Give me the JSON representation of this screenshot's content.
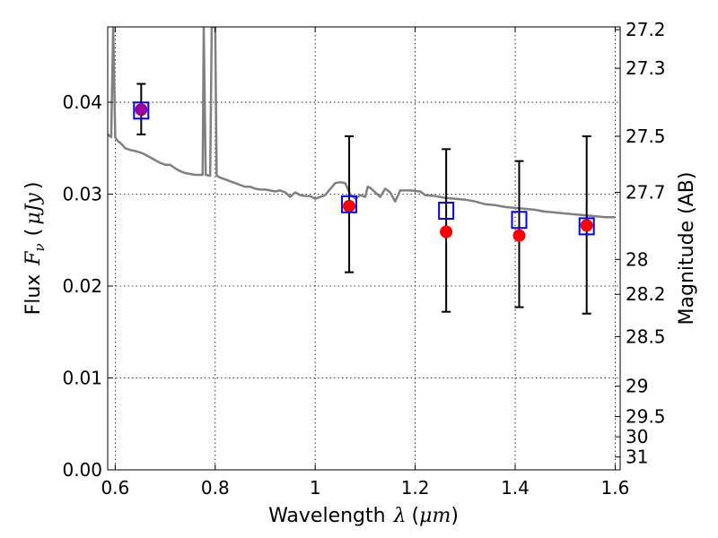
{
  "chart_data": {
    "type": "scatter",
    "xlabel": "Wavelength",
    "xlabel_symbol": "λ",
    "xlabel_unit": "μm",
    "ylabel": "Flux",
    "ylabel_symbol": "F",
    "ylabel_subscript": "ν",
    "ylabel_unit": "μJy",
    "y2label": "Magnitude (AB)",
    "xlim": [
      0.585,
      1.61
    ],
    "ylim": [
      0.0,
      0.0482
    ],
    "grid": true,
    "x_ticks": [
      0.6,
      0.8,
      1.0,
      1.2,
      1.4,
      1.6
    ],
    "x_tick_labels": [
      "0.6",
      "0.8",
      "1",
      "1.2",
      "1.4",
      "1.6"
    ],
    "y_ticks": [
      0.0,
      0.01,
      0.02,
      0.03,
      0.04
    ],
    "y_tick_labels": [
      "0.00",
      "0.01",
      "0.02",
      "0.03",
      "0.04"
    ],
    "y2_ticks": [
      {
        "label": "27.2",
        "flux": 0.0479
      },
      {
        "label": "27.3",
        "flux": 0.0437
      },
      {
        "label": "27.5",
        "flux": 0.0363
      },
      {
        "label": "27.7",
        "flux": 0.0302
      },
      {
        "label": "28",
        "flux": 0.0229
      },
      {
        "label": "28.2",
        "flux": 0.0191
      },
      {
        "label": "28.5",
        "flux": 0.0145
      },
      {
        "label": "29",
        "flux": 0.0091
      },
      {
        "label": "29.5",
        "flux": 0.0058
      },
      {
        "label": "30",
        "flux": 0.0036
      },
      {
        "label": "31",
        "flux": 0.0014
      }
    ],
    "series": [
      {
        "type": "line",
        "color": "#808080",
        "points": [
          [
            0.585,
            0.0365
          ],
          [
            0.592,
            0.0362
          ],
          [
            0.596,
            0.0482
          ],
          [
            0.6,
            0.0362
          ],
          [
            0.605,
            0.0358
          ],
          [
            0.612,
            0.0355
          ],
          [
            0.62,
            0.035
          ],
          [
            0.63,
            0.0348
          ],
          [
            0.64,
            0.0347
          ],
          [
            0.652,
            0.0345
          ],
          [
            0.66,
            0.0343
          ],
          [
            0.67,
            0.034
          ],
          [
            0.68,
            0.0337
          ],
          [
            0.69,
            0.0334
          ],
          [
            0.7,
            0.0332
          ],
          [
            0.71,
            0.0332
          ],
          [
            0.72,
            0.0328
          ],
          [
            0.73,
            0.0325
          ],
          [
            0.74,
            0.0323
          ],
          [
            0.75,
            0.0322
          ],
          [
            0.76,
            0.0321
          ],
          [
            0.775,
            0.0321
          ],
          [
            0.777,
            0.0482
          ],
          [
            0.781,
            0.0321
          ],
          [
            0.79,
            0.032
          ],
          [
            0.793,
            0.0482
          ],
          [
            0.797,
            0.0482
          ],
          [
            0.8,
            0.0482
          ],
          [
            0.803,
            0.032
          ],
          [
            0.81,
            0.0318
          ],
          [
            0.82,
            0.0316
          ],
          [
            0.83,
            0.0314
          ],
          [
            0.84,
            0.0312
          ],
          [
            0.85,
            0.031
          ],
          [
            0.86,
            0.0308
          ],
          [
            0.87,
            0.0308
          ],
          [
            0.88,
            0.0306
          ],
          [
            0.89,
            0.0305
          ],
          [
            0.9,
            0.0305
          ],
          [
            0.91,
            0.0304
          ],
          [
            0.92,
            0.0303
          ],
          [
            0.93,
            0.0304
          ],
          [
            0.94,
            0.0302
          ],
          [
            0.95,
            0.0297
          ],
          [
            0.96,
            0.0302
          ],
          [
            0.97,
            0.0299
          ],
          [
            0.98,
            0.0298
          ],
          [
            0.99,
            0.0298
          ],
          [
            1.0,
            0.0295
          ],
          [
            1.01,
            0.0297
          ],
          [
            1.02,
            0.0299
          ],
          [
            1.04,
            0.0312
          ],
          [
            1.05,
            0.0313
          ],
          [
            1.06,
            0.0312
          ],
          [
            1.07,
            0.03
          ],
          [
            1.08,
            0.0295
          ],
          [
            1.09,
            0.0299
          ],
          [
            1.1,
            0.0297
          ],
          [
            1.105,
            0.0308
          ],
          [
            1.11,
            0.0307
          ],
          [
            1.12,
            0.0302
          ],
          [
            1.13,
            0.0297
          ],
          [
            1.14,
            0.0306
          ],
          [
            1.15,
            0.0302
          ],
          [
            1.16,
            0.0292
          ],
          [
            1.17,
            0.0304
          ],
          [
            1.19,
            0.0304
          ],
          [
            1.21,
            0.0303
          ],
          [
            1.22,
            0.0299
          ],
          [
            1.24,
            0.0298
          ],
          [
            1.26,
            0.0296
          ],
          [
            1.28,
            0.0295
          ],
          [
            1.3,
            0.0294
          ],
          [
            1.32,
            0.0292
          ],
          [
            1.34,
            0.0289
          ],
          [
            1.36,
            0.0288
          ],
          [
            1.38,
            0.0286
          ],
          [
            1.4,
            0.0285
          ],
          [
            1.42,
            0.0284
          ],
          [
            1.44,
            0.0283
          ],
          [
            1.46,
            0.0281
          ],
          [
            1.48,
            0.028
          ],
          [
            1.5,
            0.0279
          ],
          [
            1.52,
            0.0278
          ],
          [
            1.54,
            0.0277
          ],
          [
            1.56,
            0.0276
          ],
          [
            1.58,
            0.0275
          ],
          [
            1.6,
            0.0275
          ]
        ]
      },
      {
        "type": "scatter",
        "marker": "square-open",
        "color": "#0000ff",
        "points": [
          {
            "x": 0.652,
            "y": 0.0391,
            "err_low": 0.0365,
            "err_high": 0.042
          },
          {
            "x": 1.068,
            "y": 0.0289,
            "err_low": 0.0215,
            "err_high": 0.0363
          },
          {
            "x": 1.262,
            "y": 0.0282,
            "err_low": 0.0172,
            "err_high": 0.0349
          },
          {
            "x": 1.408,
            "y": 0.0272,
            "err_low": 0.0177,
            "err_high": 0.0336
          },
          {
            "x": 1.543,
            "y": 0.0265,
            "err_low": 0.017,
            "err_high": 0.0363
          }
        ]
      },
      {
        "type": "scatter",
        "marker": "circle-filled",
        "color": "#ff0000",
        "points": [
          {
            "x": 0.652,
            "y": 0.0392,
            "color": "#9b009b"
          },
          {
            "x": 1.068,
            "y": 0.0287
          },
          {
            "x": 1.262,
            "y": 0.0259
          },
          {
            "x": 1.408,
            "y": 0.0255
          },
          {
            "x": 1.543,
            "y": 0.0266
          }
        ]
      }
    ]
  }
}
